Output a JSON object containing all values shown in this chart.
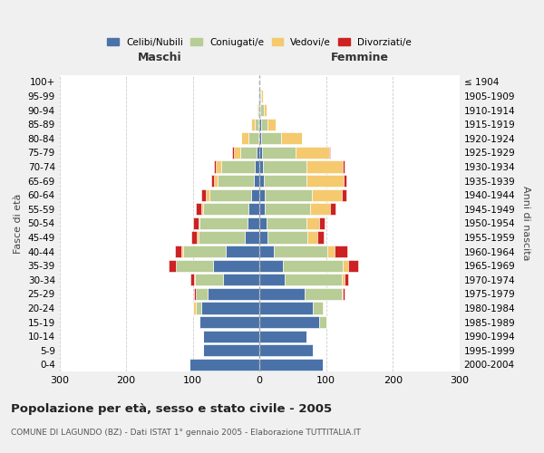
{
  "age_groups": [
    "0-4",
    "5-9",
    "10-14",
    "15-19",
    "20-24",
    "25-29",
    "30-34",
    "35-39",
    "40-44",
    "45-49",
    "50-54",
    "55-59",
    "60-64",
    "65-69",
    "70-74",
    "75-79",
    "80-84",
    "85-89",
    "90-94",
    "95-99",
    "100+"
  ],
  "birth_years": [
    "2000-2004",
    "1995-1999",
    "1990-1994",
    "1985-1989",
    "1980-1984",
    "1975-1979",
    "1970-1974",
    "1965-1969",
    "1960-1964",
    "1955-1959",
    "1950-1954",
    "1945-1949",
    "1940-1944",
    "1935-1939",
    "1930-1934",
    "1925-1929",
    "1920-1924",
    "1915-1919",
    "1910-1914",
    "1905-1909",
    "≤ 1904"
  ],
  "colors": {
    "celibi": "#4a72a8",
    "coniugati": "#b8cc96",
    "vedovi": "#f5c96e",
    "divorziati": "#cc2222"
  },
  "males": {
    "celibi": [
      105,
      85,
      85,
      90,
      88,
      78,
      55,
      70,
      50,
      22,
      18,
      16,
      12,
      8,
      7,
      4,
      2,
      2,
      1,
      1,
      0
    ],
    "coniugati": [
      0,
      0,
      0,
      0,
      8,
      18,
      42,
      55,
      65,
      70,
      72,
      68,
      63,
      55,
      50,
      25,
      15,
      5,
      2,
      0,
      0
    ],
    "vedovi": [
      0,
      0,
      0,
      0,
      3,
      0,
      1,
      1,
      2,
      2,
      2,
      3,
      5,
      5,
      8,
      10,
      10,
      5,
      2,
      0,
      0
    ],
    "divorziati": [
      0,
      0,
      0,
      0,
      0,
      2,
      5,
      10,
      10,
      8,
      8,
      8,
      8,
      4,
      3,
      2,
      0,
      0,
      0,
      0,
      0
    ]
  },
  "females": {
    "nubili": [
      95,
      80,
      70,
      90,
      80,
      68,
      38,
      35,
      22,
      12,
      10,
      8,
      8,
      6,
      5,
      4,
      3,
      2,
      1,
      1,
      0
    ],
    "coniugate": [
      0,
      0,
      0,
      10,
      15,
      55,
      85,
      90,
      80,
      60,
      60,
      68,
      70,
      65,
      65,
      50,
      30,
      10,
      5,
      2,
      0
    ],
    "vedove": [
      0,
      0,
      0,
      0,
      2,
      2,
      5,
      8,
      10,
      15,
      20,
      30,
      45,
      55,
      55,
      50,
      30,
      12,
      5,
      2,
      0
    ],
    "divorziate": [
      0,
      0,
      0,
      0,
      0,
      2,
      5,
      15,
      20,
      10,
      8,
      8,
      8,
      4,
      3,
      2,
      0,
      0,
      0,
      0,
      0
    ]
  },
  "xlim": 300,
  "title": "Popolazione per età, sesso e stato civile - 2005",
  "subtitle": "COMUNE DI LAGUNDO (BZ) - Dati ISTAT 1° gennaio 2005 - Elaborazione TUTTITALIA.IT",
  "ylabel_left": "Fasce di età",
  "ylabel_right": "Anni di nascita",
  "xlabel_left": "Maschi",
  "xlabel_right": "Femmine",
  "background_color": "#f0f0f0",
  "plot_background": "#ffffff"
}
